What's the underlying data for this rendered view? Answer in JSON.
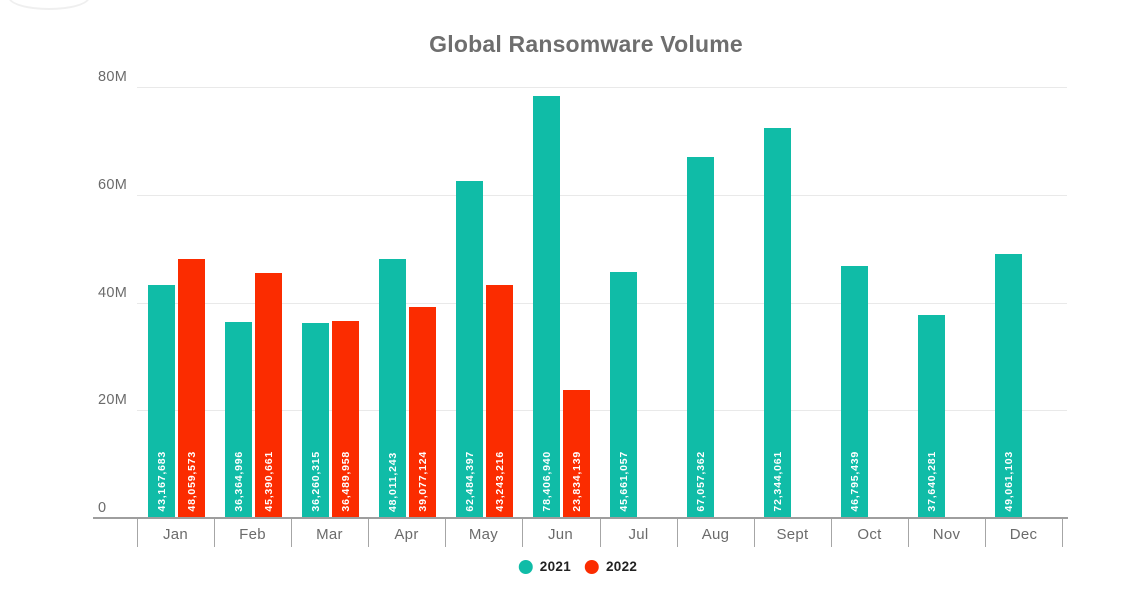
{
  "title": {
    "text": "Global Ransomware Volume"
  },
  "chart_data": {
    "type": "bar",
    "title": "Global Ransomware Volume",
    "categories": [
      "Jan",
      "Feb",
      "Mar",
      "Apr",
      "May",
      "Jun",
      "Jul",
      "Aug",
      "Sept",
      "Oct",
      "Nov",
      "Dec"
    ],
    "series": [
      {
        "name": "2021",
        "color": "#10bca7",
        "values": [
          43167683,
          36364996,
          36260315,
          48011243,
          62484397,
          78406940,
          45661057,
          67057362,
          72344061,
          46795439,
          37640281,
          49061103
        ],
        "labels": [
          "43,167,683",
          "36,364,996",
          "36,260,315",
          "48,011,243",
          "62,484,397",
          "78,406,940",
          "45,661,057",
          "67,057,362",
          "72,344,061",
          "46,795,439",
          "37,640,281",
          "49,061,103"
        ]
      },
      {
        "name": "2022",
        "color": "#fb2c00",
        "values": [
          48059573,
          45390661,
          36489958,
          39077124,
          43243216,
          23834139,
          null,
          null,
          null,
          null,
          null,
          null
        ],
        "labels": [
          "48,059,573",
          "45,390,661",
          "36,489,958",
          "39,077,124",
          "43,243,216",
          "23,834,139",
          null,
          null,
          null,
          null,
          null,
          null
        ]
      }
    ],
    "yaxis": {
      "max": 80000000,
      "ticks": [
        {
          "label": "0",
          "value": 0
        },
        {
          "label": "20M",
          "value": 20000000
        },
        {
          "label": "40M",
          "value": 40000000
        },
        {
          "label": "60M",
          "value": 60000000
        },
        {
          "label": "80M",
          "value": 80000000
        }
      ]
    },
    "ylim": [
      0,
      80000000
    ],
    "grid": true,
    "legend_position": "bottom",
    "value_label_style": "inside-bottom-vertical-white"
  },
  "legend": [
    {
      "label": "2021",
      "color": "#10bca7"
    },
    {
      "label": "2022",
      "color": "#fb2c00"
    }
  ],
  "colors": {
    "teal": "#10bca7",
    "red": "#fb2c00",
    "grid": "#e9e9e9",
    "axis_line": "#9e9e9e",
    "tick_line": "#a6a6a6",
    "title_text": "#6e6e6e",
    "axis_text": "#6b6b6b",
    "legend_text": "#222222",
    "bar_label_text": "#ffffff"
  }
}
